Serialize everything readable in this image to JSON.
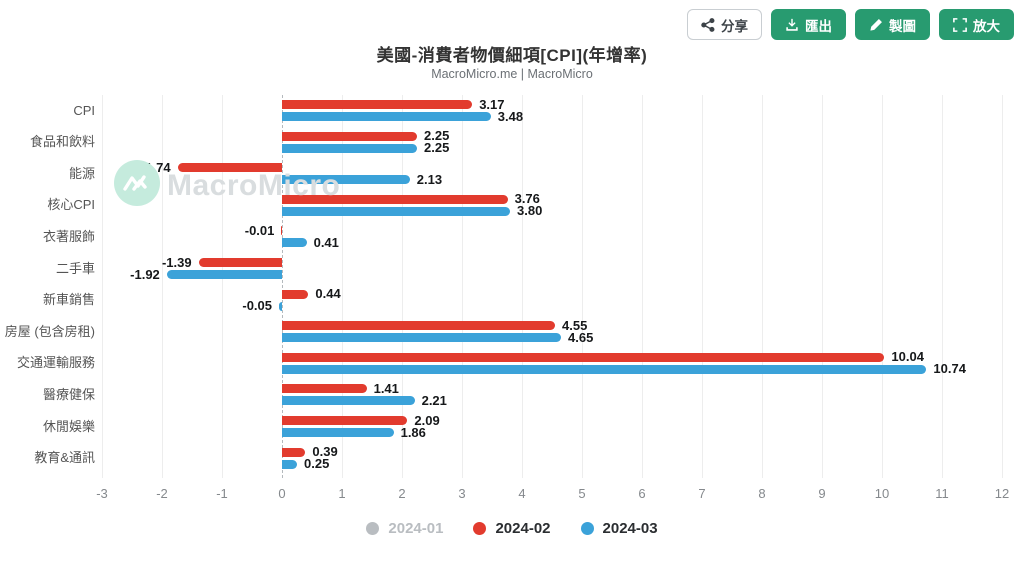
{
  "toolbar": {
    "share": "分享",
    "export": "匯出",
    "draw": "製圖",
    "zoom": "放大"
  },
  "watermark": {
    "text": "MacroMicro"
  },
  "chart_data": {
    "type": "bar",
    "orientation": "horizontal",
    "title": "美國-消費者物價細項[CPI](年增率)",
    "subtitle": "MacroMicro.me | MacroMicro",
    "categories": [
      "CPI",
      "食品和飲料",
      "能源",
      "核心CPI",
      "衣著服飾",
      "二手車",
      "新車銷售",
      "房屋 (包含房租)",
      "交通運輸服務",
      "醫療健保",
      "休閒娛樂",
      "教育&通訊"
    ],
    "series": [
      {
        "name": "2024-01",
        "color": "#b9bdc1",
        "disabled": true,
        "values": null,
        "labels": null
      },
      {
        "name": "2024-02",
        "color": "#e23b2e",
        "disabled": false,
        "values": [
          3.17,
          2.25,
          -1.74,
          3.76,
          -0.01,
          -1.39,
          0.44,
          4.55,
          10.04,
          1.41,
          2.09,
          0.39
        ],
        "labels": [
          "3.17",
          "2.25",
          "-1.74",
          "3.76",
          "-0.01",
          "-1.39",
          "0.44",
          "4.55",
          "10.04",
          "1.41",
          "2.09",
          "0.39"
        ]
      },
      {
        "name": "2024-03",
        "color": "#3ba2d9",
        "disabled": false,
        "values": [
          3.48,
          2.25,
          2.13,
          3.8,
          0.41,
          -1.92,
          -0.05,
          4.65,
          10.74,
          2.21,
          1.86,
          0.25
        ],
        "labels": [
          "3.48",
          "2.25",
          "2.13",
          "3.80",
          "0.41",
          "-1.92",
          "-0.05",
          "4.65",
          "10.74",
          "2.21",
          "1.86",
          "0.25"
        ]
      }
    ],
    "xlim": [
      -3,
      12
    ],
    "xticks": [
      -3,
      -2,
      -1,
      0,
      1,
      2,
      3,
      4,
      5,
      6,
      7,
      8,
      9,
      10,
      11,
      12
    ],
    "grid": true,
    "zero_line": "dashed",
    "legend_position": "bottom"
  }
}
